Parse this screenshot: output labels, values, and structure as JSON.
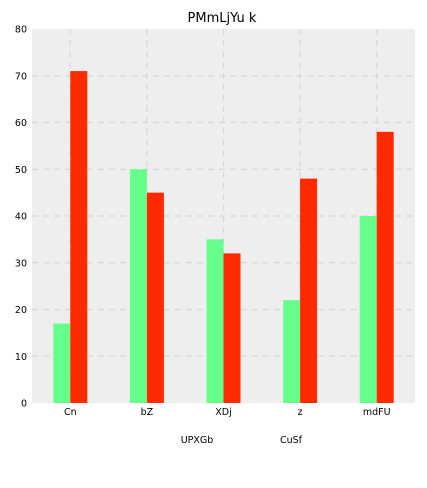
{
  "chart_data": {
    "type": "bar",
    "title": "PMmLjYu k",
    "xlabel": "",
    "ylabel": "",
    "categories": [
      "Cn",
      "bZ",
      "XDj",
      "z",
      "mdFU"
    ],
    "ylim": [
      0,
      80
    ],
    "yticks": [
      0,
      10,
      20,
      30,
      40,
      50,
      60,
      70,
      80
    ],
    "grid": true,
    "legend_placement": "bottom",
    "series": [
      {
        "name": "UPXGb",
        "color": "#66ff8c",
        "values": [
          17,
          50,
          35,
          22,
          40
        ]
      },
      {
        "name": "CuSf",
        "color": "#ff2a00",
        "values": [
          71,
          45,
          32,
          48,
          58
        ]
      }
    ]
  }
}
